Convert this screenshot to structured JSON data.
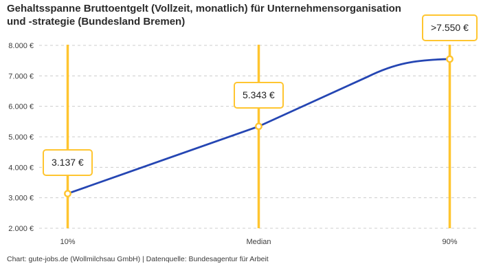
{
  "title_lines": [
    "Gehaltsspanne Bruttoentgelt (Vollzeit, monatlich) für Unternehmensorganisation",
    "und -strategie (Bundesland Bremen)"
  ],
  "footer": "Chart: gute-jobs.de (Wollmilchsau GmbH) | Datenquelle: Bundesagentur für Arbeit",
  "chart_data": {
    "type": "line",
    "title": "Gehaltsspanne Bruttoentgelt (Vollzeit, monatlich) für Unternehmensorganisation und -strategie (Bundesland Bremen)",
    "categories": [
      "10%",
      "Median",
      "90%"
    ],
    "series": [
      {
        "name": "Bruttoentgelt",
        "values": [
          3137,
          5343,
          7550
        ]
      }
    ],
    "point_labels": [
      "3.137 €",
      "5.343 €",
      ">7.550 €"
    ],
    "ylim": [
      2000,
      8000
    ],
    "y_ticks": [
      {
        "value": 2000,
        "label": "2.000 €"
      },
      {
        "value": 3000,
        "label": "3.000 €"
      },
      {
        "value": 4000,
        "label": "4.000 €"
      },
      {
        "value": 5000,
        "label": "5.000 €"
      },
      {
        "value": 6000,
        "label": "6.000 €"
      },
      {
        "value": 7000,
        "label": "7.000 €"
      },
      {
        "value": 8000,
        "label": "8.000 €"
      }
    ],
    "grid": "horizontal-dashed",
    "legend": "none",
    "source": "Bundesagentur für Arbeit",
    "colors": {
      "series_line": "#2546b3",
      "marker_line": "#ffc52f",
      "point_fill": "#ffffff",
      "grid_line": "#cccccc",
      "label_box_border": "#ffc52f",
      "label_box_bg": "#ffffff",
      "tick_text": "#3d3d3d",
      "title_text": "#2b2b2b"
    }
  }
}
